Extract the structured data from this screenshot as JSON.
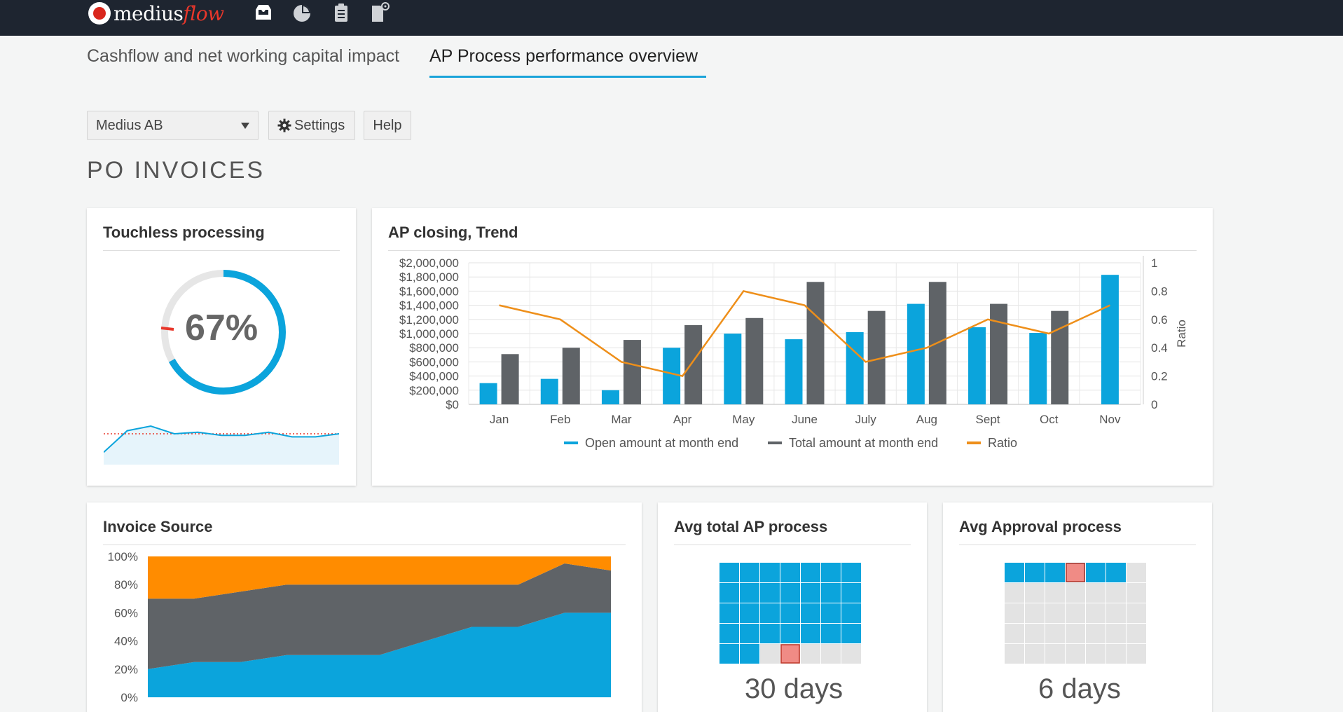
{
  "app": {
    "logo_main": "medius",
    "logo_accent": "flow",
    "top_icons": [
      "inbox-icon",
      "pie-chart-icon",
      "clipboard-icon",
      "document-settings-icon"
    ]
  },
  "tabs": [
    {
      "label": "Cashflow and net working capital impact",
      "active": false
    },
    {
      "label": "AP Process performance overview",
      "active": true
    }
  ],
  "toolbar": {
    "company_select": "Medius AB",
    "settings_label": "Settings",
    "help_label": "Help"
  },
  "section_title": "PO INVOICES",
  "touchless": {
    "title": "Touchless processing",
    "percent_label": "67%",
    "percent": 0.67
  },
  "ap_closing": {
    "title": "AP closing, Trend"
  },
  "invoice_source": {
    "title": "Invoice Source"
  },
  "avg_total": {
    "title": "Avg total AP process",
    "value_label": "30 days",
    "days": 30
  },
  "avg_approval": {
    "title": "Avg Approval process",
    "value_label": "6 days",
    "days": 6
  },
  "colors": {
    "blue": "#0ba4dc",
    "gray": "#5f6367",
    "orange": "#ff8c00",
    "line_orange": "#ee8f1a",
    "red": "#e8372b",
    "topbar": "#1e2530"
  },
  "chart_data": [
    {
      "type": "line",
      "title": "",
      "x": [
        "Jan",
        "Feb",
        "Mar",
        "Apr",
        "May",
        "June",
        "July",
        "Aug",
        "Sept",
        "Oct",
        "Nov"
      ],
      "series": [
        {
          "name": "",
          "values": [
            0.58,
            0.72,
            0.75,
            0.7,
            0.71,
            0.69,
            0.69,
            0.71,
            0.68,
            0.68,
            0.7
          ]
        }
      ],
      "threshold": 0.7,
      "ylim": [
        0.5,
        0.8
      ]
    },
    {
      "type": "bar",
      "title": "AP closing, Trend",
      "categories": [
        "Jan",
        "Feb",
        "Mar",
        "Apr",
        "May",
        "June",
        "July",
        "Aug",
        "Sept",
        "Oct",
        "Nov"
      ],
      "series": [
        {
          "name": "Open amount at month end",
          "values": [
            300000,
            360000,
            200000,
            800000,
            1000000,
            920000,
            1020000,
            1420000,
            1090000,
            1010000,
            1830000
          ]
        },
        {
          "name": "Total amount at month end",
          "values": [
            710000,
            800000,
            910000,
            1120000,
            1220000,
            1730000,
            1320000,
            1730000,
            1420000,
            1320000,
            null
          ]
        },
        {
          "name": "Ratio",
          "axis": "right",
          "values": [
            0.7,
            0.6,
            0.3,
            0.2,
            0.8,
            0.7,
            0.3,
            0.4,
            0.6,
            0.5,
            0.7
          ]
        }
      ],
      "ylim": [
        0,
        2000000
      ],
      "y_ticks": [
        "$0",
        "$200,000",
        "$400,000",
        "$600,000",
        "$800,000",
        "$1,000,000",
        "$1,200,000",
        "$1,400,000",
        "$1,600,000",
        "$1,800,000",
        "$2,000,000"
      ],
      "y2_label": "Ratio",
      "y2_ticks": [
        "0",
        "0.2",
        "0.4",
        "0.6",
        "0.8",
        "1"
      ],
      "y2lim": [
        0,
        1
      ],
      "legend": "bottom",
      "grid": true
    },
    {
      "type": "area",
      "title": "Invoice Source",
      "stacked": true,
      "x_count": 11,
      "series": [
        {
          "name": "",
          "color": "#0ba4dc",
          "values": [
            20,
            25,
            25,
            30,
            30,
            30,
            40,
            50,
            50,
            60,
            60
          ]
        },
        {
          "name": "",
          "color": "#5f6367",
          "values": [
            50,
            45,
            50,
            50,
            50,
            50,
            40,
            30,
            30,
            35,
            30
          ]
        },
        {
          "name": "",
          "color": "#ff8c00",
          "values": [
            30,
            30,
            25,
            20,
            20,
            20,
            20,
            20,
            20,
            5,
            10
          ]
        }
      ],
      "y_ticks": [
        "0%",
        "20%",
        "40%",
        "60%",
        "80%",
        "100%"
      ],
      "ylim": [
        0,
        100
      ]
    }
  ]
}
